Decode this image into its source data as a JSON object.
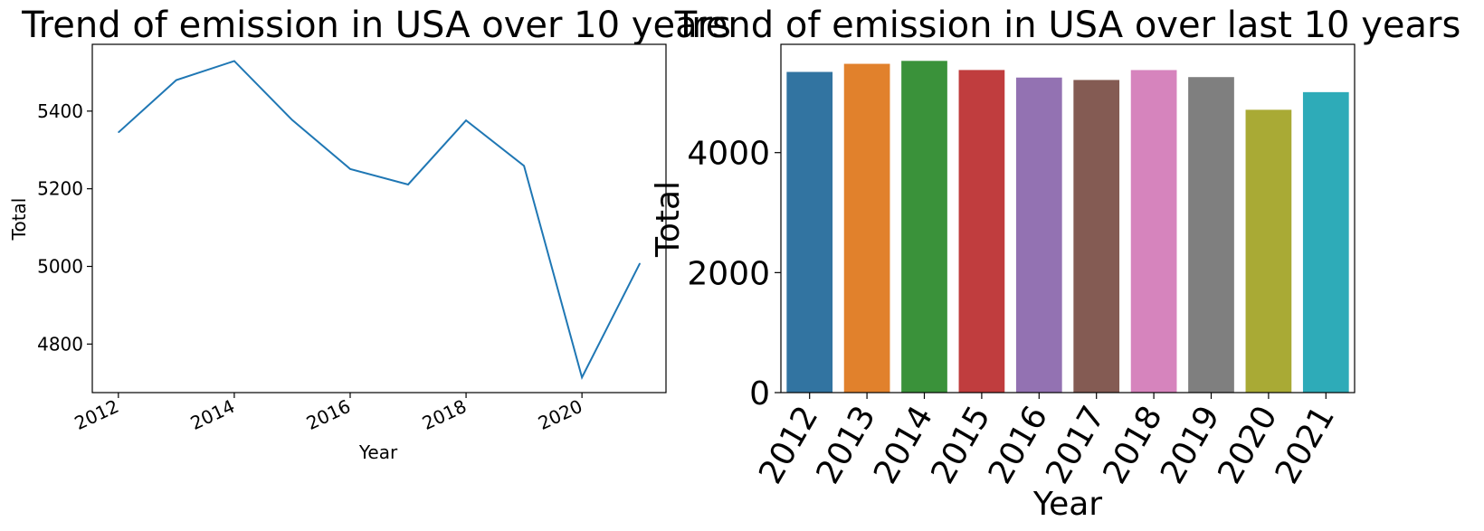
{
  "chart_data": [
    {
      "type": "line",
      "title": "Trend of emission in USA over 10 years",
      "xlabel": "Year",
      "ylabel": "Total",
      "x": [
        2012,
        2013,
        2014,
        2015,
        2016,
        2017,
        2018,
        2019,
        2020,
        2021
      ],
      "series": [
        {
          "values": [
            5345,
            5480,
            5529,
            5377,
            5251,
            5211,
            5376,
            5259,
            4714,
            5008
          ]
        }
      ],
      "xticks": [
        "2012",
        "2014",
        "2016",
        "2018",
        "2020"
      ],
      "yticks": [
        "4800",
        "5000",
        "5200",
        "5400"
      ],
      "xlim": [
        2011.55,
        2021.45
      ],
      "ylim": [
        4675,
        5572
      ],
      "grid": false,
      "color": "#1f77b4"
    },
    {
      "type": "bar",
      "title": "Trend of emission in USA over last 10 years",
      "xlabel": "Year",
      "ylabel": "Total",
      "categories": [
        "2012",
        "2013",
        "2014",
        "2015",
        "2016",
        "2017",
        "2018",
        "2019",
        "2020",
        "2021"
      ],
      "values": [
        5345,
        5480,
        5529,
        5377,
        5251,
        5211,
        5376,
        5259,
        4714,
        5008
      ],
      "yticks": [
        "0",
        "2000",
        "4000"
      ],
      "ylim": [
        0,
        5805
      ],
      "grid": false,
      "colors": [
        "#3274a1",
        "#e1812c",
        "#3a923a",
        "#c03d3e",
        "#9372b2",
        "#845b53",
        "#d684bd",
        "#7f7f7f",
        "#a9aa35",
        "#2eabb8"
      ]
    }
  ]
}
